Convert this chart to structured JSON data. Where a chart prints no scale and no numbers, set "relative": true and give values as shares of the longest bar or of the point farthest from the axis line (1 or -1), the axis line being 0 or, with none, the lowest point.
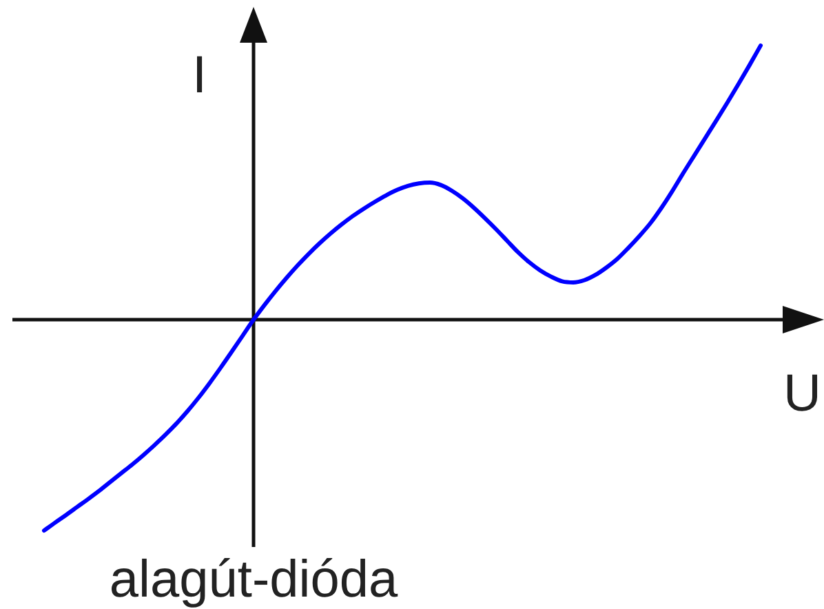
{
  "chart_data": {
    "type": "line",
    "xlabel": "U",
    "ylabel": "I",
    "annotations": [
      "alagút-dióda"
    ],
    "relative": true,
    "legend": false,
    "marker": "none",
    "line_style": "solid",
    "color": "#0000ff",
    "categories": [
      null,
      null,
      null,
      null,
      null,
      null,
      null,
      null,
      null,
      null,
      null,
      null,
      null,
      null,
      null,
      null,
      null,
      null,
      null,
      null,
      null,
      null,
      null,
      null,
      null,
      null,
      null,
      null,
      null,
      null,
      null,
      null,
      null,
      null,
      null,
      null,
      null,
      null,
      null,
      null,
      null,
      null,
      null,
      null,
      null,
      null,
      null,
      null,
      null,
      null,
      null,
      null,
      null,
      null,
      null,
      null,
      null,
      null,
      null,
      null,
      null,
      null,
      null,
      null,
      null,
      null
    ],
    "values": [
      -0.769,
      -0.74,
      -0.712,
      -0.683,
      -0.654,
      -0.624,
      -0.592,
      -0.56,
      -0.528,
      -0.494,
      -0.458,
      -0.42,
      -0.379,
      -0.334,
      -0.285,
      -0.232,
      -0.176,
      -0.118,
      -0.059,
      0,
      0.054,
      0.105,
      0.153,
      0.198,
      0.24,
      0.279,
      0.315,
      0.348,
      0.378,
      0.405,
      0.43,
      0.453,
      0.473,
      0.488,
      0.497,
      0.5,
      0.491,
      0.47,
      0.442,
      0.408,
      0.37,
      0.33,
      0.288,
      0.246,
      0.21,
      0.18,
      0.157,
      0.14,
      0.136,
      0.144,
      0.163,
      0.19,
      0.222,
      0.262,
      0.305,
      0.352,
      0.408,
      0.47,
      0.536,
      0.6,
      0.664,
      0.728,
      0.793,
      0.86,
      0.929,
      1
    ]
  }
}
